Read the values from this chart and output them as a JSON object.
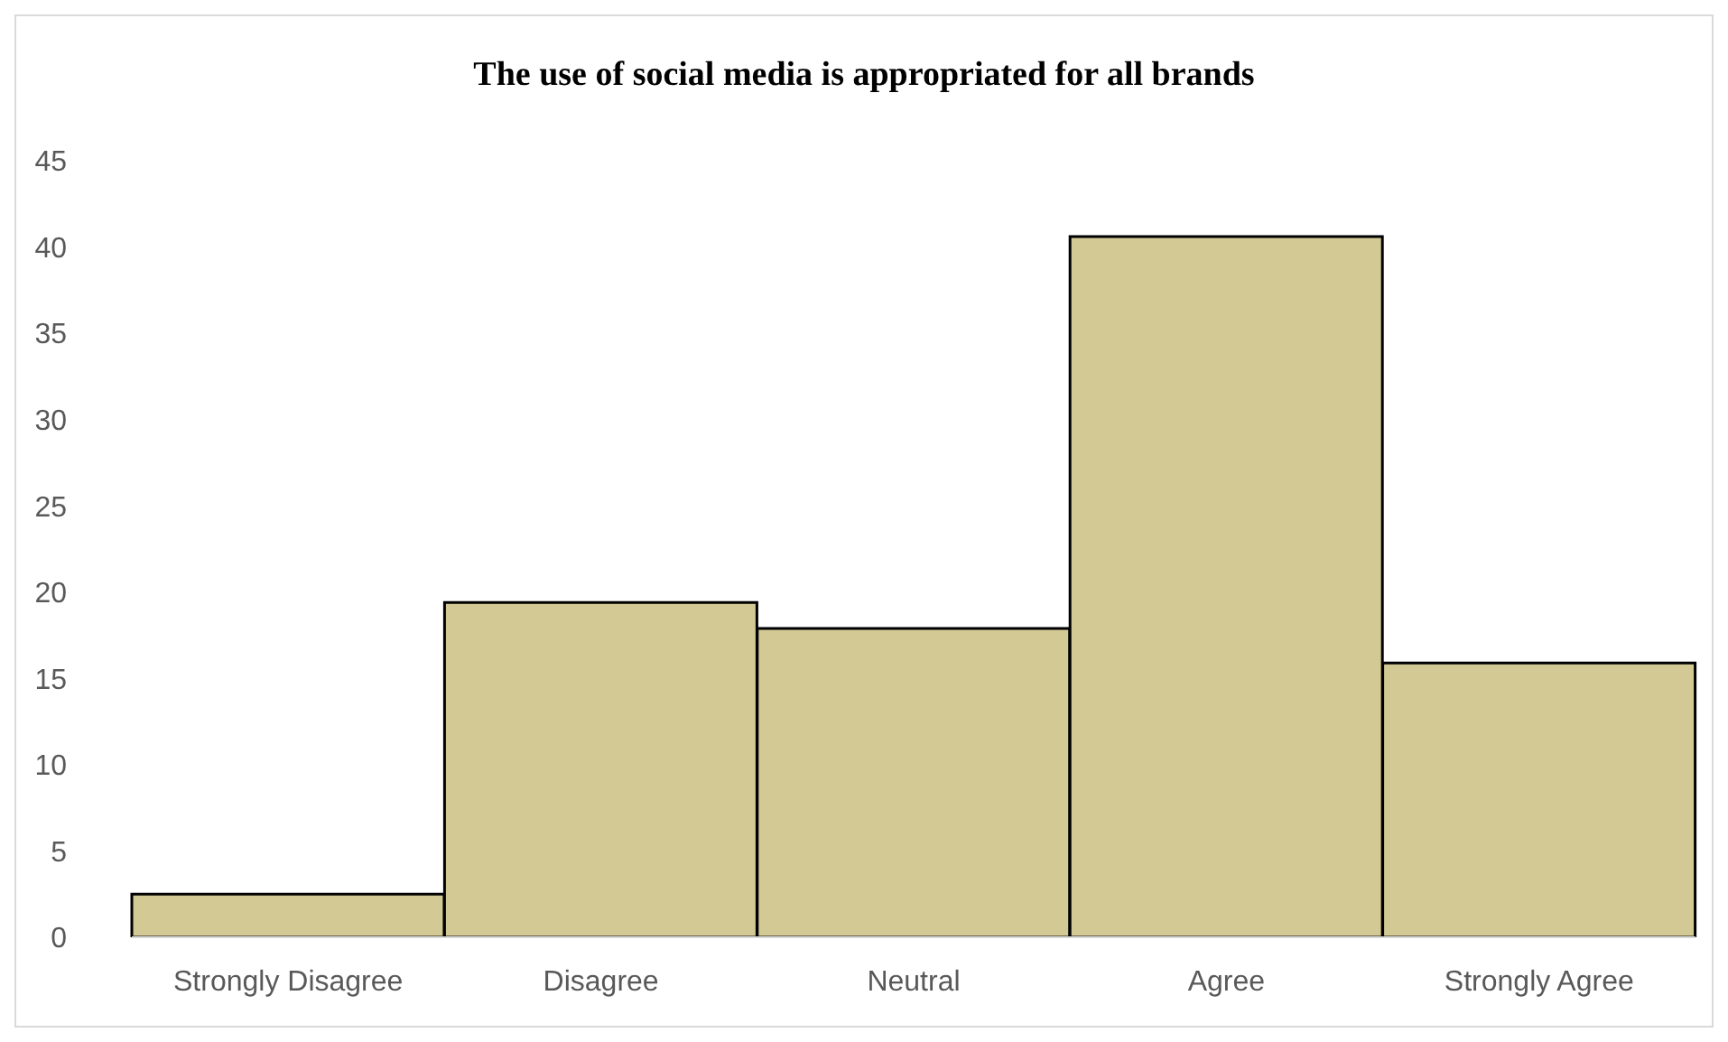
{
  "chart_data": {
    "type": "bar",
    "title": "The use of social media is appropriated for all brands",
    "categories": [
      "Strongly Disagree",
      "Disagree",
      "Neutral",
      "Agree",
      "Strongly Agree"
    ],
    "values": [
      2.5,
      19.4,
      17.9,
      40.6,
      15.9
    ],
    "color": "#d3c994",
    "ylim": [
      0,
      45
    ],
    "yticks": [
      0,
      5,
      10,
      15,
      20,
      25,
      30,
      35,
      40,
      45
    ]
  }
}
